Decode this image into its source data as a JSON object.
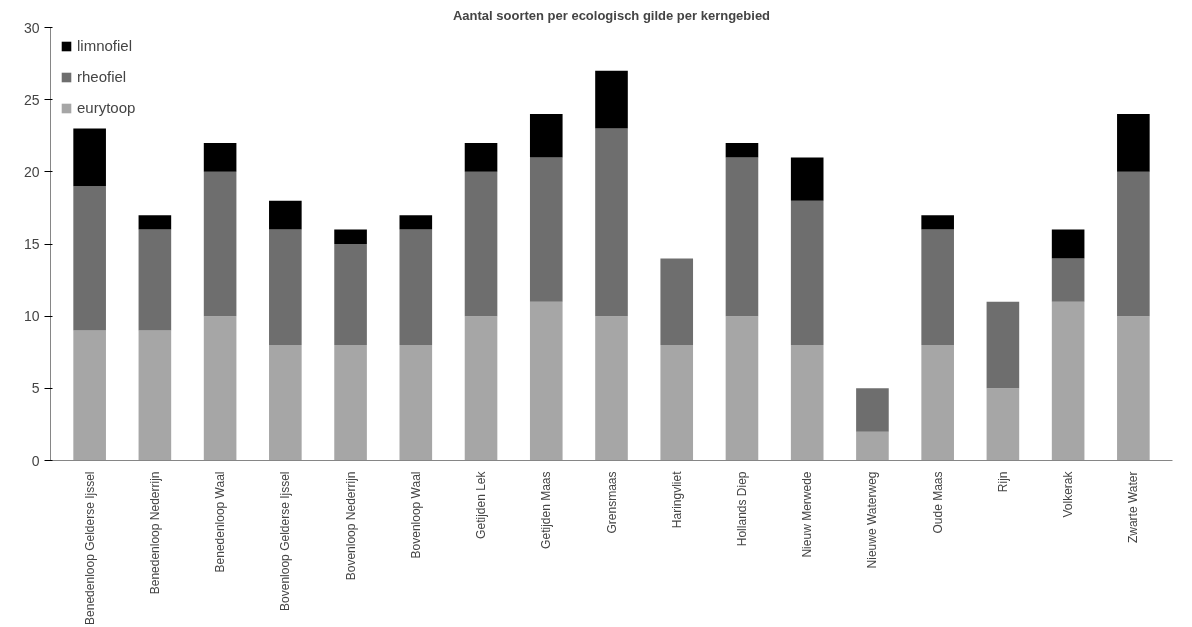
{
  "chart_data": {
    "type": "bar",
    "title": "Aantal soorten per ecologisch gilde per kerngebied",
    "categories": [
      "Benedenloop Gelderse Ijssel",
      "Benedenloop Nederrijn",
      "Benedenloop Waal",
      "Bovenloop Gelderse Ijssel",
      "Bovenloop Nederrijn",
      "Bovenloop Waal",
      "Getijden Lek",
      "Getijden Maas",
      "Grensmaas",
      "Haringvliet",
      "Hollands Diep",
      "Nieuw Merwede",
      "Nieuwe Waterweg",
      "Oude Maas",
      "Rijn",
      "Volkerak",
      "Zwarte Water"
    ],
    "series": [
      {
        "name": "eurytoop",
        "color": "#a6a6a6",
        "values": [
          9,
          9,
          10,
          8,
          8,
          8,
          10,
          11,
          10,
          8,
          10,
          8,
          2,
          8,
          5,
          11,
          10
        ]
      },
      {
        "name": "rheofiel",
        "color": "#6e6e6e",
        "values": [
          10,
          7,
          10,
          8,
          7,
          8,
          10,
          10,
          13,
          6,
          11,
          10,
          3,
          8,
          6,
          3,
          10
        ]
      },
      {
        "name": "limnofiel",
        "color": "#000000",
        "values": [
          4,
          1,
          2,
          2,
          1,
          1,
          2,
          3,
          4,
          0,
          1,
          3,
          0,
          1,
          0,
          2,
          4
        ]
      }
    ],
    "stacked": true,
    "ylim": [
      0,
      30
    ],
    "yticks": [
      0,
      5,
      10,
      15,
      20,
      25,
      30
    ],
    "grid": false,
    "legend": "top left"
  }
}
